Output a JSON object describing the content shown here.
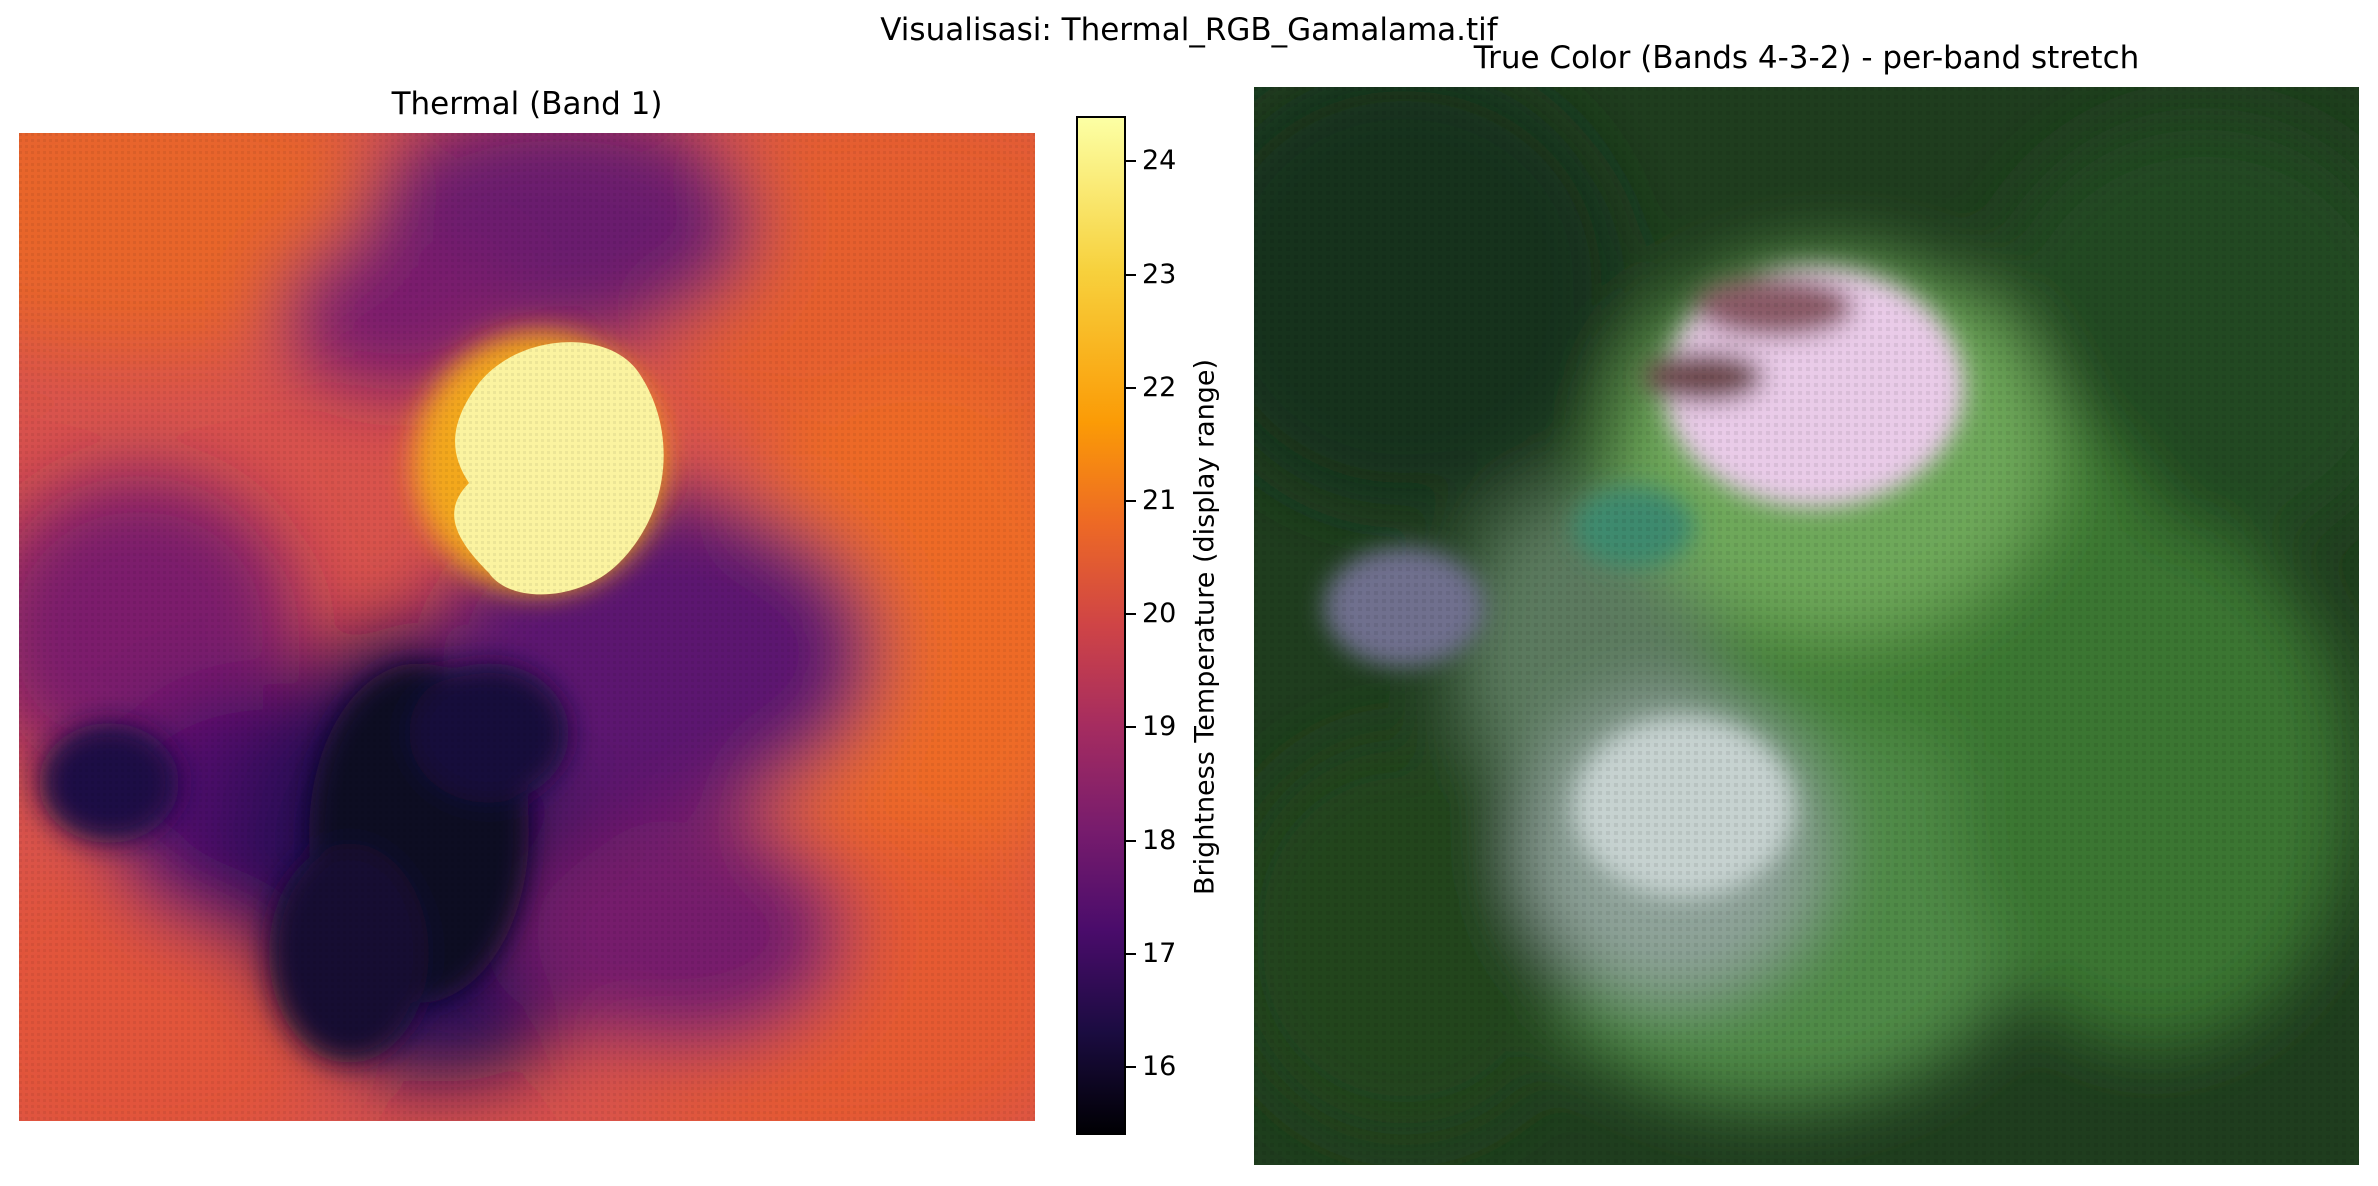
{
  "figure": {
    "suptitle": "Visualisasi: Thermal_RGB_Gamalama.tif"
  },
  "thermal": {
    "title": "Thermal (Band 1)",
    "colormap": "inferno",
    "colorbar": {
      "label": "Brightness Temperature (display range)",
      "range": [
        15.4,
        24.4
      ],
      "ticks": [
        "16",
        "17",
        "18",
        "19",
        "20",
        "21",
        "22",
        "23",
        "24"
      ]
    }
  },
  "rgb": {
    "title": "True Color (Bands 4-3-2) - per-band stretch"
  },
  "colors": {
    "hot": "#fcffa4",
    "warm": "#ed6925",
    "cool": "#4a0c6b",
    "cold": "#000004",
    "vegetation": "#2f6a2a",
    "crater": "#e6c8e6"
  }
}
